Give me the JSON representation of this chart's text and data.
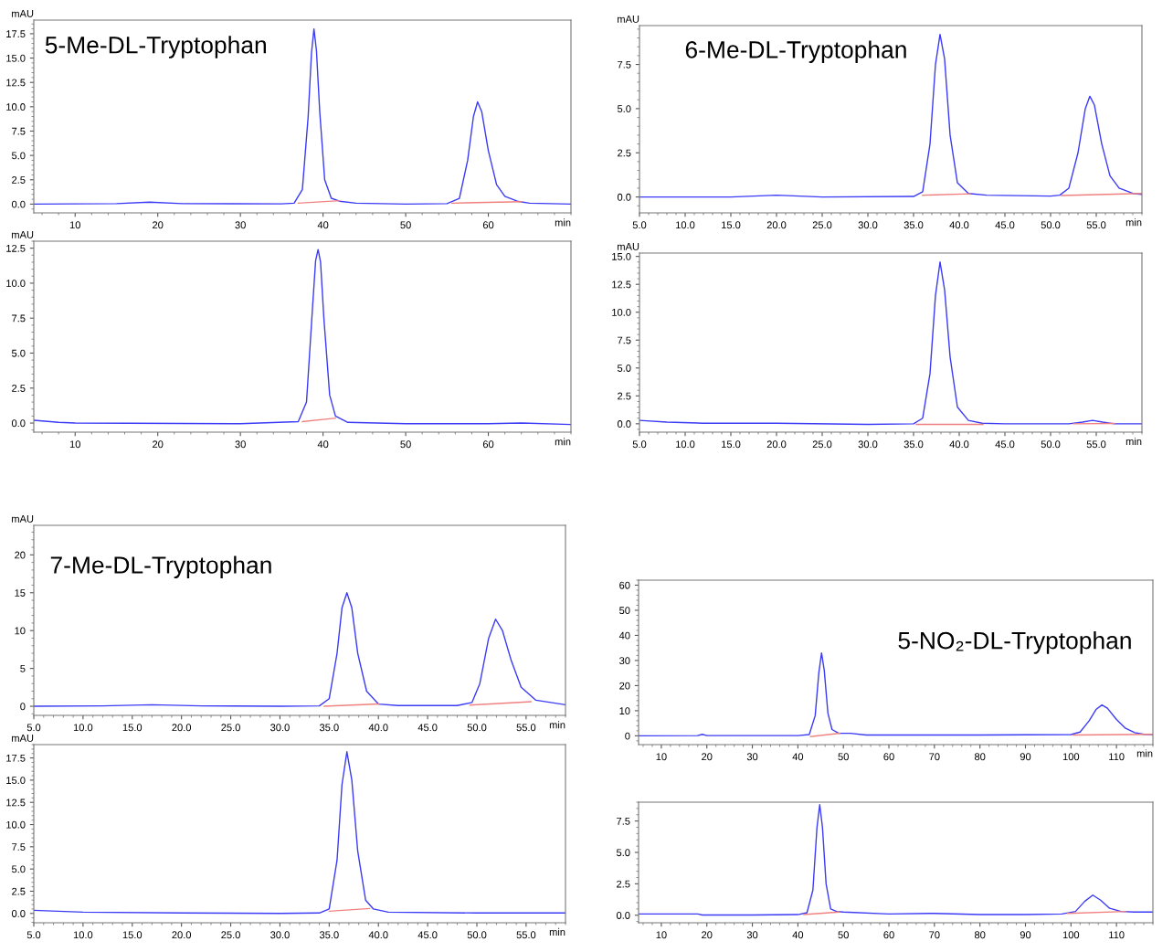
{
  "chart_data": [
    {
      "type": "line",
      "title": "5-Me-DL-Tryptophan",
      "ylabel": "mAU",
      "xlabel": "min",
      "xlim": [
        5,
        70
      ],
      "ylim": [
        -0.9,
        18.9
      ],
      "grid": false,
      "legend": false,
      "marker": "none",
      "line_style": "solid",
      "xticks": [
        10,
        20,
        30,
        40,
        50,
        60
      ],
      "yticks": [
        {
          "value": 0,
          "label": "0.0"
        },
        {
          "value": 2.5,
          "label": "2.5"
        },
        {
          "value": 5,
          "label": "5.0"
        },
        {
          "value": 7.5,
          "label": "7.5"
        },
        {
          "value": 10,
          "label": "10.0"
        },
        {
          "value": 12.5,
          "label": "12.5"
        },
        {
          "value": 15,
          "label": "15.0"
        },
        {
          "value": 17.5,
          "label": "17.5"
        }
      ],
      "series": [
        {
          "color": "#3b3bf5",
          "x": [
            5,
            15,
            19,
            23,
            35,
            36.5,
            37.5,
            38.2,
            38.6,
            38.9,
            39.2,
            39.6,
            40.2,
            41,
            42,
            44,
            50,
            55,
            56.5,
            57.5,
            58.2,
            58.7,
            59.2,
            60,
            61,
            62,
            63.5,
            65,
            70
          ],
          "values": [
            0,
            0.05,
            0.2,
            0.05,
            0.03,
            0.1,
            1.5,
            9,
            15.5,
            18,
            15.8,
            9.5,
            2.5,
            0.6,
            0.3,
            0.1,
            0,
            0.05,
            0.6,
            4.5,
            9,
            10.5,
            9.5,
            5.5,
            2,
            0.8,
            0.3,
            0.1,
            0
          ]
        },
        {
          "color": "#f08080",
          "x": [
            37,
            42
          ],
          "values": [
            0.1,
            0.35
          ]
        },
        {
          "color": "#f08080",
          "x": [
            55.6,
            64
          ],
          "values": [
            0.1,
            0.25
          ]
        }
      ]
    },
    {
      "type": "line",
      "ylabel": "mAU",
      "xlabel": "min",
      "xlim": [
        5,
        70
      ],
      "ylim": [
        -0.65,
        13
      ],
      "grid": false,
      "legend": false,
      "marker": "none",
      "line_style": "solid",
      "xticks": [
        10,
        20,
        30,
        40,
        50,
        60
      ],
      "yticks": [
        {
          "value": 0,
          "label": "0.0"
        },
        {
          "value": 2.5,
          "label": "2.5"
        },
        {
          "value": 5,
          "label": "5.0"
        },
        {
          "value": 7.5,
          "label": "7.5"
        },
        {
          "value": 10,
          "label": "10.0"
        },
        {
          "value": 12.5,
          "label": "12.5"
        }
      ],
      "series": [
        {
          "color": "#3b3bf5",
          "x": [
            5,
            8,
            10,
            30,
            37,
            38,
            38.7,
            39.1,
            39.4,
            39.7,
            40.1,
            40.8,
            41.5,
            43,
            50,
            60,
            64,
            70
          ],
          "values": [
            0.2,
            0.05,
            0,
            -0.05,
            0.1,
            1.5,
            8,
            11.6,
            12.4,
            11.5,
            7.5,
            2,
            0.5,
            0.05,
            -0.05,
            -0.05,
            0,
            -0.1
          ]
        },
        {
          "color": "#f08080",
          "x": [
            37.5,
            41.5
          ],
          "values": [
            0.1,
            0.35
          ]
        }
      ]
    },
    {
      "type": "line",
      "title": "6-Me-DL-Tryptophan",
      "ylabel": "mAU",
      "xlabel": "min",
      "xlim": [
        5,
        60
      ],
      "ylim": [
        -0.9,
        9.7
      ],
      "grid": false,
      "legend": false,
      "marker": "none",
      "line_style": "solid",
      "xticks": [
        {
          "value": 5,
          "label": "5.0"
        },
        {
          "value": 10,
          "label": "10.0"
        },
        {
          "value": 15,
          "label": "15.0"
        },
        {
          "value": 20,
          "label": "20.0"
        },
        {
          "value": 25,
          "label": "25.0"
        },
        {
          "value": 30,
          "label": "30.0"
        },
        {
          "value": 35,
          "label": "35.0"
        },
        {
          "value": 40,
          "label": "40.0"
        },
        {
          "value": 45,
          "label": "45.0"
        },
        {
          "value": 50,
          "label": "50.0"
        },
        {
          "value": 55,
          "label": "55.0"
        }
      ],
      "yticks": [
        {
          "value": 0,
          "label": "0.0"
        },
        {
          "value": 2.5,
          "label": "2.5"
        },
        {
          "value": 5,
          "label": "5.0"
        },
        {
          "value": 7.5,
          "label": "7.5"
        }
      ],
      "series": [
        {
          "color": "#3b3bf5",
          "x": [
            5,
            15,
            20,
            25,
            35,
            36,
            36.8,
            37.4,
            37.9,
            38.4,
            39,
            39.8,
            41,
            43,
            50,
            51,
            52,
            53,
            53.8,
            54.3,
            54.8,
            55.6,
            56.5,
            57.5,
            59,
            60
          ],
          "values": [
            0,
            0,
            0.1,
            0,
            0.03,
            0.3,
            3,
            7.5,
            9.2,
            7.8,
            3.5,
            0.8,
            0.2,
            0.1,
            0.05,
            0.1,
            0.5,
            2.5,
            5,
            5.7,
            5.2,
            3,
            1.2,
            0.5,
            0.2,
            0.15
          ]
        },
        {
          "color": "#f08080",
          "x": [
            36,
            41.2
          ],
          "values": [
            0.1,
            0.18
          ]
        },
        {
          "color": "#f08080",
          "x": [
            51.2,
            60
          ],
          "values": [
            0.08,
            0.2
          ]
        }
      ]
    },
    {
      "type": "line",
      "ylabel": "mAU",
      "xlabel": "min",
      "xlim": [
        5,
        60
      ],
      "ylim": [
        -0.75,
        15.3
      ],
      "grid": false,
      "legend": false,
      "marker": "none",
      "line_style": "solid",
      "xticks": [
        {
          "value": 5,
          "label": "5.0"
        },
        {
          "value": 10,
          "label": "10.0"
        },
        {
          "value": 15,
          "label": "15.0"
        },
        {
          "value": 20,
          "label": "20.0"
        },
        {
          "value": 25,
          "label": "25.0"
        },
        {
          "value": 30,
          "label": "30.0"
        },
        {
          "value": 35,
          "label": "35.0"
        },
        {
          "value": 40,
          "label": "40.0"
        },
        {
          "value": 45,
          "label": "45.0"
        },
        {
          "value": 50,
          "label": "50.0"
        },
        {
          "value": 55,
          "label": "55.0"
        }
      ],
      "yticks": [
        {
          "value": 0,
          "label": "0.0"
        },
        {
          "value": 2.5,
          "label": "2.5"
        },
        {
          "value": 5,
          "label": "5.0"
        },
        {
          "value": 7.5,
          "label": "7.5"
        },
        {
          "value": 10,
          "label": "10.0"
        },
        {
          "value": 12.5,
          "label": "12.5"
        },
        {
          "value": 15,
          "label": "15.0"
        }
      ],
      "series": [
        {
          "color": "#3b3bf5",
          "x": [
            5,
            8,
            12,
            20,
            30,
            35,
            36,
            36.8,
            37.4,
            37.9,
            38.4,
            39,
            39.8,
            41,
            42.5,
            45,
            52,
            53.5,
            54.6,
            55.7,
            57,
            60
          ],
          "values": [
            0.3,
            0.15,
            0.05,
            0.05,
            -0.05,
            0,
            0.5,
            4.5,
            11.5,
            14.5,
            12,
            6,
            1.5,
            0.3,
            0.05,
            0,
            0,
            0.15,
            0.3,
            0.15,
            0,
            0
          ]
        },
        {
          "color": "#f08080",
          "x": [
            35.3,
            42.6
          ],
          "values": [
            -0.05,
            -0.05
          ]
        },
        {
          "color": "#f08080",
          "x": [
            52.5,
            57
          ],
          "values": [
            0,
            0.03
          ]
        }
      ]
    },
    {
      "type": "line",
      "title": "7-Me-DL-Tryptophan",
      "ylabel": "mAU",
      "xlabel": "min",
      "xlim": [
        5,
        59
      ],
      "ylim": [
        -1.2,
        23.9
      ],
      "grid": false,
      "legend": false,
      "marker": "none",
      "line_style": "solid",
      "xticks": [
        {
          "value": 5,
          "label": "5.0"
        },
        {
          "value": 10,
          "label": "10.0"
        },
        {
          "value": 15,
          "label": "15.0"
        },
        {
          "value": 20,
          "label": "20.0"
        },
        {
          "value": 25,
          "label": "25.0"
        },
        {
          "value": 30,
          "label": "30.0"
        },
        {
          "value": 35,
          "label": "35.0"
        },
        {
          "value": 40,
          "label": "40.0"
        },
        {
          "value": 45,
          "label": "45.0"
        },
        {
          "value": 50,
          "label": "50.0"
        },
        {
          "value": 55,
          "label": "55.0"
        }
      ],
      "yticks": [
        0,
        5,
        10,
        15,
        20
      ],
      "series": [
        {
          "color": "#3b3bf5",
          "x": [
            5,
            12,
            17,
            22,
            30,
            34,
            35,
            35.8,
            36.3,
            36.8,
            37.3,
            37.9,
            38.8,
            40,
            42,
            48,
            49.5,
            50.3,
            51.2,
            51.9,
            52.6,
            53.5,
            54.5,
            56,
            59
          ],
          "values": [
            0,
            0.05,
            0.2,
            0.05,
            0,
            0.05,
            1,
            7,
            13,
            15,
            13,
            7,
            2,
            0.3,
            0.1,
            0.1,
            0.5,
            3,
            9,
            11.5,
            10,
            6,
            2.5,
            0.8,
            0.2
          ]
        },
        {
          "color": "#f08080",
          "x": [
            34.5,
            40
          ],
          "values": [
            0,
            0.3
          ]
        },
        {
          "color": "#f08080",
          "x": [
            49.3,
            55.5
          ],
          "values": [
            0.15,
            0.6
          ]
        }
      ]
    },
    {
      "type": "line",
      "ylabel": "mAU",
      "xlabel": "min",
      "xlim": [
        5,
        59
      ],
      "ylim": [
        -1.05,
        19
      ],
      "grid": false,
      "legend": false,
      "marker": "none",
      "line_style": "solid",
      "xticks": [
        {
          "value": 5,
          "label": "5.0"
        },
        {
          "value": 10,
          "label": "10.0"
        },
        {
          "value": 15,
          "label": "15.0"
        },
        {
          "value": 20,
          "label": "20.0"
        },
        {
          "value": 25,
          "label": "25.0"
        },
        {
          "value": 30,
          "label": "30.0"
        },
        {
          "value": 35,
          "label": "35.0"
        },
        {
          "value": 40,
          "label": "40.0"
        },
        {
          "value": 45,
          "label": "45.0"
        },
        {
          "value": 50,
          "label": "50.0"
        },
        {
          "value": 55,
          "label": "55.0"
        }
      ],
      "yticks": [
        {
          "value": 0,
          "label": "0.0"
        },
        {
          "value": 2.5,
          "label": "2.5"
        },
        {
          "value": 5,
          "label": "5.0"
        },
        {
          "value": 7.5,
          "label": "7.5"
        },
        {
          "value": 10,
          "label": "10.0"
        },
        {
          "value": 12.5,
          "label": "12.5"
        },
        {
          "value": 15,
          "label": "15.0"
        },
        {
          "value": 17.5,
          "label": "17.5"
        }
      ],
      "series": [
        {
          "color": "#3b3bf5",
          "x": [
            5,
            10,
            20,
            30,
            34,
            35,
            35.8,
            36.3,
            36.8,
            37.3,
            37.9,
            38.7,
            39.5,
            41,
            50,
            59
          ],
          "values": [
            0.35,
            0.15,
            0.05,
            0,
            0.05,
            0.5,
            6,
            14.5,
            18.2,
            15,
            7,
            1.5,
            0.5,
            0.15,
            0.05,
            0.05
          ]
        },
        {
          "color": "#f08080",
          "x": [
            35,
            39.1
          ],
          "values": [
            0.25,
            0.55
          ]
        }
      ]
    },
    {
      "type": "line",
      "title": "5-NO₂-DL-Tryptophan",
      "xlabel": "min",
      "xlim": [
        5,
        118
      ],
      "ylim": [
        -3.5,
        62
      ],
      "grid": false,
      "legend": false,
      "marker": "none",
      "line_style": "solid",
      "xticks": [
        10,
        20,
        30,
        40,
        50,
        60,
        70,
        80,
        90,
        100,
        110
      ],
      "yticks": [
        0,
        10,
        20,
        30,
        40,
        50,
        60
      ],
      "series": [
        {
          "color": "#3b3bf5",
          "x": [
            5,
            18,
            19,
            20,
            40,
            42.5,
            43.8,
            44.6,
            45.2,
            45.8,
            46.6,
            47.5,
            49,
            51.5,
            55,
            80,
            100,
            102,
            104,
            105.5,
            106.8,
            108,
            110,
            112,
            114,
            116,
            118
          ],
          "values": [
            0,
            0.1,
            0.6,
            0.1,
            0.1,
            0.5,
            8,
            25,
            33,
            26,
            9,
            2.5,
            1,
            1,
            0.3,
            0.3,
            0.5,
            1.5,
            6,
            10.5,
            12.3,
            11,
            6.5,
            3,
            1.3,
            0.6,
            0.5
          ]
        },
        {
          "color": "#f08080",
          "x": [
            42.8,
            49.2
          ],
          "values": [
            -0.3,
            1
          ]
        },
        {
          "color": "#f08080",
          "x": [
            100.5,
            118
          ],
          "values": [
            0.3,
            0.6
          ]
        }
      ]
    },
    {
      "type": "line",
      "xlim": [
        5,
        118
      ],
      "ylim": [
        -0.6,
        9
      ],
      "grid": false,
      "legend": false,
      "marker": "none",
      "line_style": "solid",
      "xticks": [
        10,
        20,
        30,
        40,
        50,
        60,
        70,
        80,
        90,
        100,
        110
      ],
      "yticks": [
        {
          "value": 0,
          "label": "0.0"
        },
        {
          "value": 2.5,
          "label": "2.5"
        },
        {
          "value": 5,
          "label": "5.0"
        },
        {
          "value": 7.5,
          "label": "7.5"
        }
      ],
      "series": [
        {
          "color": "#3b3bf5",
          "x": [
            5,
            18,
            19,
            30,
            40,
            42,
            43.3,
            44.2,
            44.8,
            45.4,
            46.2,
            47.2,
            48.5,
            50,
            60,
            70,
            80,
            90,
            98,
            101,
            103,
            104.8,
            106.5,
            108.5,
            111,
            114,
            118
          ],
          "values": [
            0.1,
            0.1,
            0.02,
            0.02,
            0.05,
            0.2,
            2,
            7,
            8.8,
            7,
            2.5,
            0.5,
            0.3,
            0.25,
            0.1,
            0.15,
            0.05,
            0.05,
            0.1,
            0.3,
            1.1,
            1.6,
            1.2,
            0.55,
            0.3,
            0.25,
            0.25
          ]
        },
        {
          "color": "#f08080",
          "x": [
            41.3,
            49
          ],
          "values": [
            0.05,
            0.25
          ]
        },
        {
          "color": "#f08080",
          "x": [
            99.3,
            112
          ],
          "values": [
            0.15,
            0.3
          ]
        }
      ]
    }
  ]
}
